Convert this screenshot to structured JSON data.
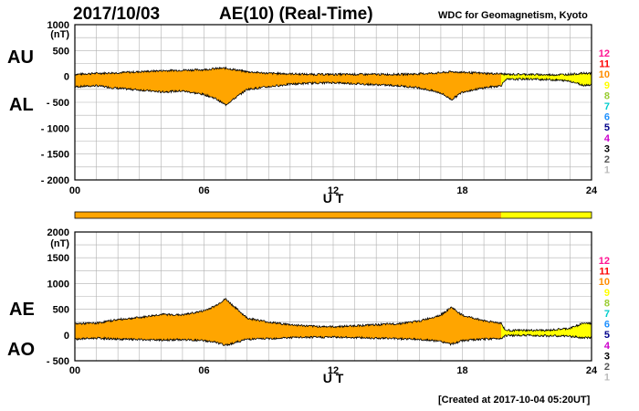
{
  "header": {
    "date": "2017/10/03",
    "title": "AE(10) (Real-Time)",
    "source": "WDC for Geomagnetism, Kyoto"
  },
  "footer": {
    "created": "[Created at 2017-10-04 05:20UT]"
  },
  "panel_labels": {
    "au": "AU",
    "al": "AL",
    "ae": "AE",
    "ao": "AO"
  },
  "station_legend": {
    "labels": [
      "12",
      "11",
      "10",
      "9",
      "8",
      "7",
      "6",
      "5",
      "4",
      "3",
      "2",
      "1"
    ],
    "colors": [
      "#ff1493",
      "#ff0000",
      "#ff8c00",
      "#ffff00",
      "#9acd32",
      "#00cccc",
      "#1e90ff",
      "#00008b",
      "#cc00cc",
      "#000000",
      "#555555",
      "#bbbbbb"
    ]
  },
  "colors": {
    "final": "#ffa500",
    "provisional": "#ffff00",
    "outline": "#000000"
  },
  "chart_data": [
    {
      "type": "area",
      "panel": "AU/AL",
      "title": "AE(10) (Real-Time)",
      "xlabel": "U T",
      "ylabel": "(nT)",
      "xlim": [
        0,
        24
      ],
      "ylim": [
        -2000,
        1000
      ],
      "xticks": [
        "00",
        "06",
        "12",
        "18",
        "24"
      ],
      "yticks": [
        "1000",
        "500",
        "0",
        "- 500",
        "- 1000",
        "- 1500",
        "- 2000"
      ],
      "x_hours": [
        0,
        1,
        2,
        3,
        4,
        5,
        6,
        6.5,
        7,
        8,
        9,
        10,
        11,
        12,
        13,
        14,
        15,
        16,
        17,
        17.5,
        18,
        19,
        19.8,
        20,
        21,
        22,
        23,
        23.6,
        24
      ],
      "series": [
        {
          "name": "AU",
          "values": [
            40,
            60,
            70,
            90,
            110,
            120,
            130,
            150,
            160,
            90,
            60,
            50,
            40,
            40,
            40,
            40,
            40,
            50,
            70,
            90,
            80,
            60,
            50,
            40,
            40,
            30,
            40,
            60,
            60
          ]
        },
        {
          "name": "AL",
          "values": [
            -200,
            -180,
            -230,
            -260,
            -300,
            -280,
            -350,
            -420,
            -550,
            -250,
            -200,
            -150,
            -130,
            -120,
            -140,
            -160,
            -180,
            -220,
            -320,
            -450,
            -300,
            -220,
            -180,
            -60,
            -50,
            -60,
            -90,
            -170,
            -160
          ]
        }
      ],
      "provisional_from_hour": 19.8
    },
    {
      "type": "area",
      "panel": "AE/AO",
      "xlabel": "U T",
      "ylabel": "(nT)",
      "xlim": [
        0,
        24
      ],
      "ylim": [
        -500,
        2000
      ],
      "xticks": [
        "00",
        "06",
        "12",
        "18",
        "24"
      ],
      "yticks": [
        "2000",
        "1500",
        "1000",
        "500",
        "0",
        "- 500"
      ],
      "x_hours": [
        0,
        1,
        2,
        3,
        4,
        5,
        6,
        6.5,
        7,
        8,
        9,
        10,
        11,
        12,
        13,
        14,
        15,
        16,
        17,
        17.5,
        18,
        19,
        19.8,
        20,
        21,
        22,
        23,
        23.6,
        24
      ],
      "series": [
        {
          "name": "AE",
          "values": [
            220,
            230,
            300,
            340,
            400,
            390,
            470,
            560,
            700,
            330,
            250,
            200,
            170,
            160,
            180,
            200,
            220,
            270,
            390,
            540,
            380,
            280,
            230,
            90,
            90,
            90,
            130,
            230,
            220
          ]
        },
        {
          "name": "AO",
          "values": [
            -80,
            -60,
            -80,
            -90,
            -100,
            -90,
            -110,
            -140,
            -200,
            -80,
            -70,
            -50,
            -45,
            -40,
            -50,
            -60,
            -70,
            -85,
            -125,
            -180,
            -110,
            -80,
            -65,
            -10,
            -5,
            -15,
            -25,
            -55,
            -50
          ]
        }
      ],
      "provisional_from_hour": 19.8
    }
  ]
}
